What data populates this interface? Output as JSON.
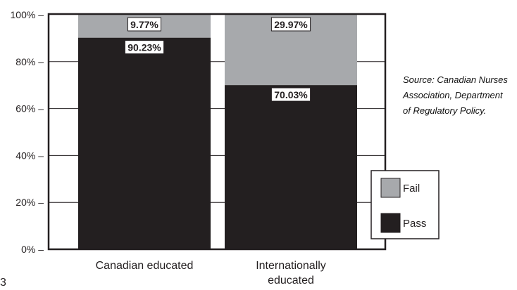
{
  "chart_data": {
    "type": "bar",
    "stacked": true,
    "categories": [
      [
        "Canadian educated"
      ],
      [
        "Internationally",
        "educated"
      ]
    ],
    "series": [
      {
        "name": "Pass",
        "values": [
          90.23,
          70.03
        ],
        "labels": [
          "90.23%",
          "70.03%"
        ],
        "color": "#231f20"
      },
      {
        "name": "Fail",
        "values": [
          9.77,
          29.97
        ],
        "labels": [
          "9.77%",
          "29.97%"
        ],
        "color": "#a7a9ac"
      }
    ],
    "y_ticks": [
      {
        "value": 0,
        "label": "0% –"
      },
      {
        "value": 20,
        "label": "20% –"
      },
      {
        "value": 40,
        "label": "40% –"
      },
      {
        "value": 60,
        "label": "60% –"
      },
      {
        "value": 80,
        "label": "80% –"
      },
      {
        "value": 100,
        "label": "100% –"
      }
    ],
    "ylim": [
      0,
      100
    ],
    "grid": true,
    "legend_order": [
      "Fail",
      "Pass"
    ],
    "legend_position": "bottom-right",
    "note_lines": [
      "Source: Canadian Nurses",
      "Association, Department",
      "of Regulatory Policy."
    ],
    "page_marker": "3"
  }
}
